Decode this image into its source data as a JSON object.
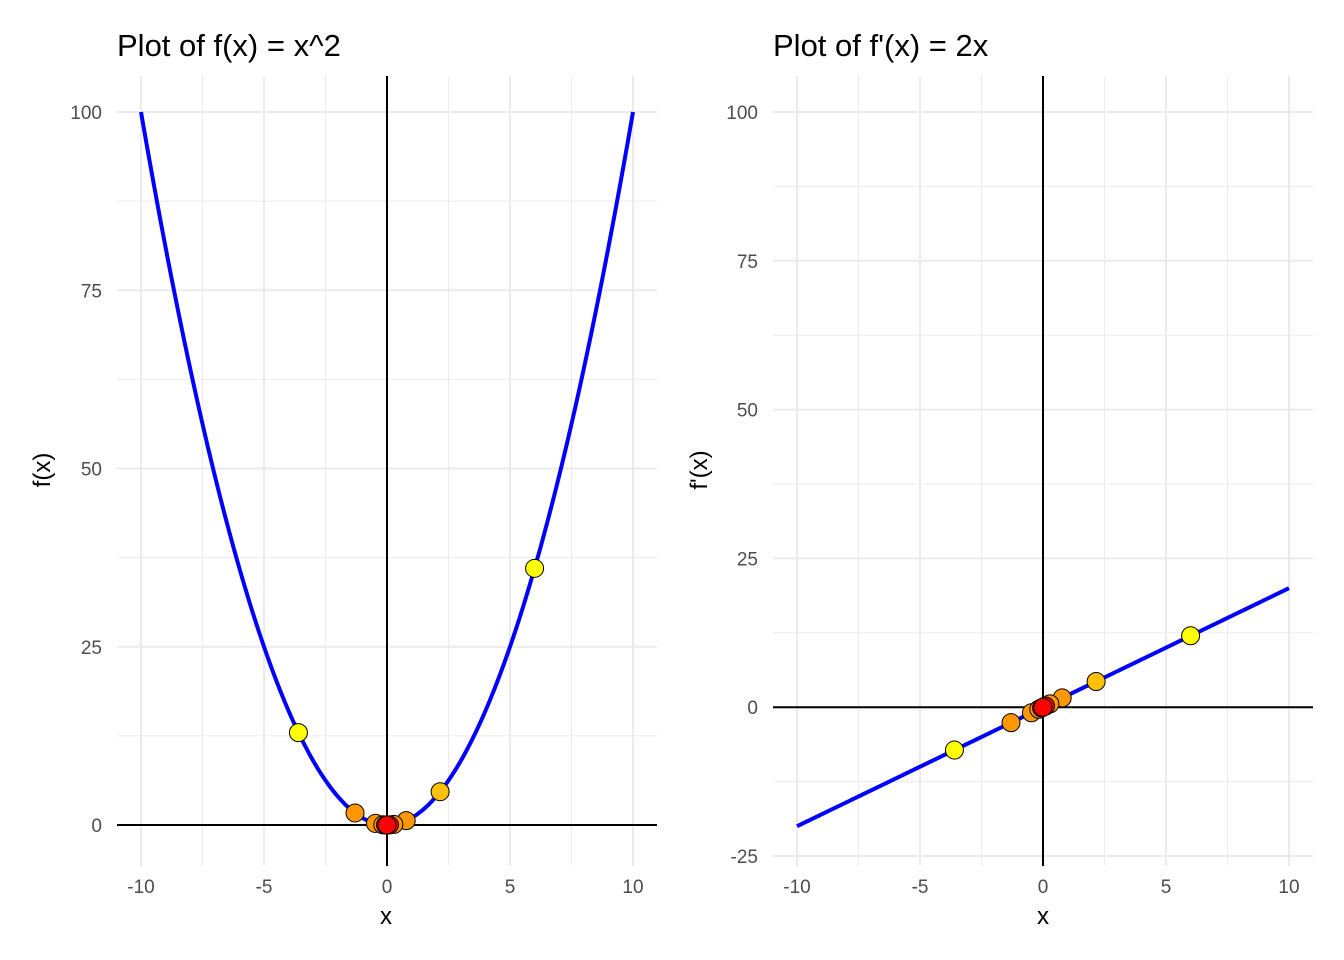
{
  "colors": {
    "curve": "#0000ff",
    "grid": "#ebebeb",
    "axis_line": "#000000",
    "point_stroke": "#000000",
    "point_yellow": "#ffff00",
    "point_gold": "#ffc107",
    "point_orange": "#ff9800",
    "point_red": "#ff0000"
  },
  "chart_data": [
    {
      "type": "line",
      "title": "Plot of f(x) = x^2",
      "xlabel": "x",
      "ylabel": "f(x)",
      "function": "x^2",
      "xlim": [
        -10,
        10
      ],
      "ylim": [
        0,
        100
      ],
      "x_ticks": [
        -10,
        -5,
        0,
        5,
        10
      ],
      "x_tick_labels": [
        "-10",
        "-5",
        "0",
        "5",
        "10"
      ],
      "y_ticks": [
        0,
        25,
        50,
        75,
        100
      ],
      "y_tick_labels": [
        "0",
        "25",
        "50",
        "75",
        "100"
      ],
      "grid": true,
      "series": [
        {
          "type": "line",
          "x_range": [
            -10,
            10
          ]
        },
        {
          "type": "scatter",
          "points": [
            {
              "x": 6.0,
              "y": 36.0,
              "color": "yellow"
            },
            {
              "x": -3.6,
              "y": 12.96,
              "color": "yellow"
            },
            {
              "x": 2.16,
              "y": 4.67,
              "color": "gold"
            },
            {
              "x": -1.3,
              "y": 1.69,
              "color": "orange"
            },
            {
              "x": 0.78,
              "y": 0.61,
              "color": "orange"
            },
            {
              "x": -0.47,
              "y": 0.22,
              "color": "orange"
            },
            {
              "x": 0.28,
              "y": 0.08,
              "color": "orange"
            },
            {
              "x": -0.17,
              "y": 0.03,
              "color": "orange"
            },
            {
              "x": 0.1,
              "y": 0.01,
              "color": "red"
            },
            {
              "x": -0.06,
              "y": 0.0,
              "color": "red"
            },
            {
              "x": 0.0,
              "y": 0.0,
              "color": "red"
            }
          ]
        }
      ]
    },
    {
      "type": "line",
      "title": "Plot of  f'(x) = 2x",
      "xlabel": "x",
      "ylabel": "f'(x)",
      "function": "2x",
      "xlim": [
        -10,
        10
      ],
      "ylim": [
        -25,
        100
      ],
      "x_ticks": [
        -10,
        -5,
        0,
        5,
        10
      ],
      "x_tick_labels": [
        "-10",
        "-5",
        "0",
        "5",
        "10"
      ],
      "y_ticks": [
        -25,
        0,
        25,
        50,
        75,
        100
      ],
      "y_tick_labels": [
        "-25",
        "0",
        "25",
        "50",
        "75",
        "100"
      ],
      "grid": true,
      "series": [
        {
          "type": "line",
          "x_range": [
            -10,
            10
          ]
        },
        {
          "type": "scatter",
          "points": [
            {
              "x": 6.0,
              "y": 12.0,
              "color": "yellow"
            },
            {
              "x": -3.6,
              "y": -7.2,
              "color": "yellow"
            },
            {
              "x": 2.16,
              "y": 4.32,
              "color": "gold"
            },
            {
              "x": -1.3,
              "y": -2.6,
              "color": "orange"
            },
            {
              "x": 0.78,
              "y": 1.56,
              "color": "orange"
            },
            {
              "x": -0.47,
              "y": -0.94,
              "color": "orange"
            },
            {
              "x": 0.28,
              "y": 0.56,
              "color": "orange"
            },
            {
              "x": -0.17,
              "y": -0.34,
              "color": "orange"
            },
            {
              "x": 0.1,
              "y": 0.2,
              "color": "red"
            },
            {
              "x": -0.06,
              "y": -0.12,
              "color": "red"
            },
            {
              "x": 0.0,
              "y": 0.0,
              "color": "red"
            }
          ]
        }
      ]
    }
  ]
}
